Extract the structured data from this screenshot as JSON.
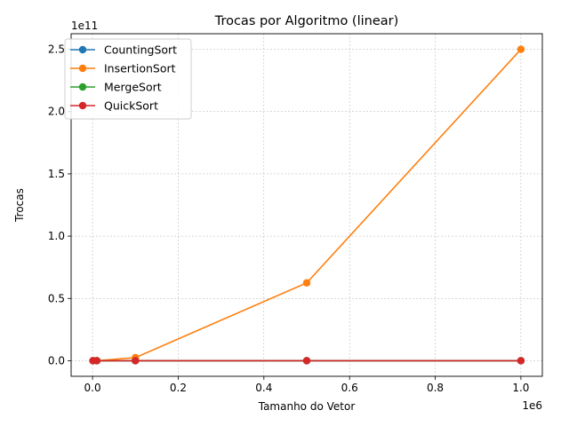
{
  "chart_data": {
    "type": "line",
    "title": "Trocas por Algoritmo (linear)",
    "xlabel": "Tamanho do Vetor",
    "ylabel": "Trocas",
    "x_offset_label": "1e6",
    "y_offset_label": "1e11",
    "x": [
      1000,
      10000,
      100000,
      500000,
      1000000
    ],
    "xlim": [
      -50000,
      1050000
    ],
    "ylim": [
      -12500000000,
      262500000000
    ],
    "x_ticks": [
      0,
      200000,
      400000,
      600000,
      800000,
      1000000
    ],
    "x_tick_labels": [
      "0.0",
      "0.2",
      "0.4",
      "0.6",
      "0.8",
      "1.0"
    ],
    "y_ticks": [
      0,
      50000000000,
      100000000000,
      150000000000,
      200000000000,
      250000000000
    ],
    "y_tick_labels": [
      "0.0",
      "0.5",
      "1.0",
      "1.5",
      "2.0",
      "2.5"
    ],
    "grid": true,
    "legend_position": "top-left",
    "series": [
      {
        "name": "CountingSort",
        "color": "#1f77b4",
        "values": [
          0,
          0,
          0,
          0,
          0
        ]
      },
      {
        "name": "InsertionSort",
        "color": "#ff7f0e",
        "values": [
          250000,
          25000000,
          2500000000,
          62500000000,
          250000000000
        ]
      },
      {
        "name": "MergeSort",
        "color": "#2ca02c",
        "values": [
          5000,
          65000,
          800000,
          4500000,
          9500000
        ]
      },
      {
        "name": "QuickSort",
        "color": "#d62728",
        "values": [
          5000,
          70000,
          850000,
          5000000,
          10500000
        ]
      }
    ]
  }
}
